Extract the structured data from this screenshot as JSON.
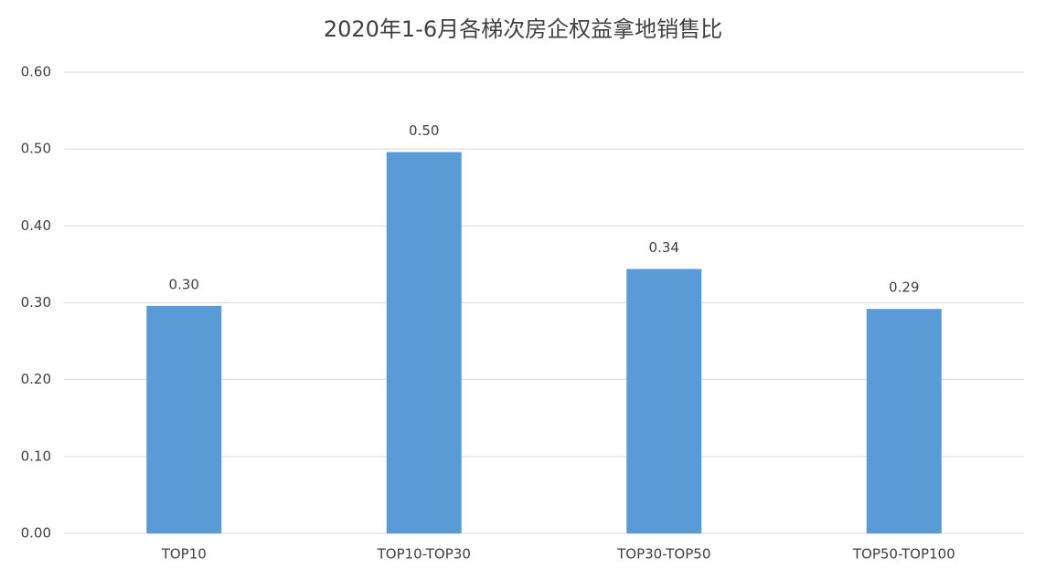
{
  "chart_data": {
    "type": "bar",
    "title": "2020年1-6月各梯次房企权益拿地销售比",
    "categories": [
      "TOP10",
      "TOP10-TOP30",
      "TOP30-TOP50",
      "TOP50-TOP100"
    ],
    "values": [
      0.296,
      0.496,
      0.344,
      0.292
    ],
    "value_labels": [
      "0.30",
      "0.50",
      "0.34",
      "0.29"
    ],
    "color": "#5b9bd5",
    "ylim": [
      0,
      0.6
    ],
    "yticks": [
      {
        "value": 0,
        "label": "0.00"
      },
      {
        "value": 0.1,
        "label": "0.10"
      },
      {
        "value": 0.2,
        "label": "0.20"
      },
      {
        "value": 0.3,
        "label": "0.30"
      },
      {
        "value": 0.4,
        "label": "0.40"
      },
      {
        "value": 0.5,
        "label": "0.50"
      },
      {
        "value": 0.6,
        "label": "0.60"
      }
    ],
    "grid": true
  }
}
